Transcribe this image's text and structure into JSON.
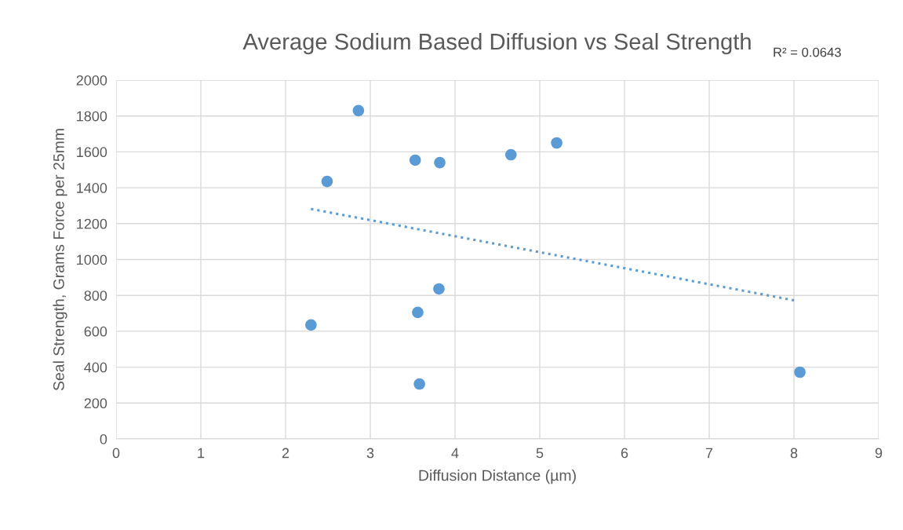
{
  "chart_data": {
    "type": "scatter",
    "title": "Average Sodium Based Diffusion vs Seal Strength",
    "xlabel": "Diffusion Distance (µm)",
    "ylabel": "Seal Strength, Grams Force per 25mm",
    "annotations": [
      "R² = 0.0643"
    ],
    "series": [
      {
        "color": "#5b9bd5",
        "marker": "circle",
        "x": [
          2.86,
          2.49,
          3.53,
          3.82,
          4.66,
          5.2,
          3.81,
          3.56,
          2.3,
          3.58,
          8.07
        ],
        "values": [
          1830,
          1435,
          1554,
          1540,
          1584,
          1650,
          836,
          705,
          635,
          306,
          372
        ]
      },
      {
        "type": "line",
        "color": "#5b9bd5",
        "marker": "none",
        "line_style": "dotted",
        "x": [
          2.3,
          8.03
        ],
        "values": [
          1282,
          770
        ]
      }
    ],
    "xlim": [
      0,
      9
    ],
    "xticks": [
      0,
      1,
      2,
      3,
      4,
      5,
      6,
      7,
      8,
      9
    ],
    "ylim": [
      0,
      2000
    ],
    "yticks": [
      0,
      200,
      400,
      600,
      800,
      1000,
      1200,
      1400,
      1600,
      1800,
      2000
    ],
    "grid": true,
    "legend": false
  }
}
